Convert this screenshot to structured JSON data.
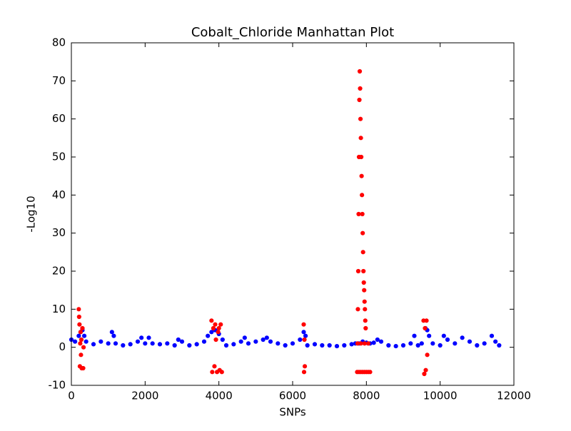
{
  "chart_data": {
    "type": "scatter",
    "title": "Cobalt_Chloride Manhattan Plot",
    "x_label": "SNPs",
    "y_label": "-Log10",
    "xlim": [
      0,
      12000
    ],
    "ylim": [
      -10,
      80
    ],
    "xticks": [
      0,
      2000,
      4000,
      6000,
      8000,
      10000,
      12000
    ],
    "yticks": [
      -10,
      0,
      10,
      20,
      30,
      40,
      50,
      60,
      70,
      80
    ],
    "series": [
      {
        "color": "#0000ff",
        "x": [
          0,
          100,
          200,
          250,
          300,
          350,
          400,
          600,
          800,
          1000,
          1100,
          1150,
          1200,
          1400,
          1600,
          1800,
          1900,
          2000,
          2100,
          2200,
          2400,
          2600,
          2800,
          2900,
          3000,
          3200,
          3400,
          3600,
          3700,
          3800,
          3900,
          4000,
          4100,
          4200,
          4400,
          4600,
          4700,
          4800,
          5000,
          5200,
          5300,
          5400,
          5600,
          5800,
          6000,
          6200,
          6300,
          6350,
          6400,
          6600,
          6800,
          7000,
          7200,
          7400,
          7600,
          7700,
          7800,
          7900,
          8000,
          8100,
          8200,
          8300,
          8400,
          8600,
          8800,
          9000,
          9200,
          9300,
          9400,
          9500,
          9600,
          9650,
          9700,
          9800,
          10000,
          10100,
          10200,
          10400,
          10600,
          10800,
          11000,
          11200,
          11400,
          11500,
          11600
        ],
        "values": [
          2,
          1.5,
          3,
          4,
          4.5,
          3,
          1.5,
          0.8,
          1.5,
          1,
          4,
          3,
          1,
          0.5,
          0.8,
          1.5,
          2.5,
          1,
          2.5,
          1,
          0.8,
          1,
          0.5,
          2,
          1.5,
          0.5,
          0.8,
          1.5,
          3,
          4,
          4.5,
          3.5,
          2,
          0.5,
          0.8,
          1.5,
          2.5,
          1,
          1.5,
          2,
          2.5,
          1.5,
          1,
          0.5,
          1,
          2,
          4,
          3,
          0.5,
          0.8,
          0.5,
          0.5,
          0.3,
          0.5,
          0.8,
          1,
          1,
          1.5,
          1.2,
          1,
          1.2,
          2,
          1.5,
          0.5,
          0.3,
          0.5,
          1,
          3,
          0.5,
          1,
          5,
          4.5,
          3,
          1,
          0.5,
          3,
          2,
          1,
          2.5,
          1.5,
          0.5,
          1,
          3,
          1.5,
          0.5
        ]
      },
      {
        "color": "#ff0000",
        "x": [
          200,
          210,
          220,
          230,
          240,
          250,
          260,
          270,
          280,
          300,
          320,
          330,
          3800,
          3820,
          3850,
          3880,
          3900,
          3920,
          3950,
          3980,
          4000,
          4020,
          4050,
          4080,
          6300,
          6310,
          6320,
          6330,
          7750,
          7760,
          7770,
          7780,
          7790,
          7800,
          7810,
          7820,
          7830,
          7840,
          7850,
          7860,
          7870,
          7880,
          7890,
          7900,
          7910,
          7920,
          7930,
          7940,
          7950,
          7960,
          7970,
          7980,
          7800,
          7850,
          7900,
          7950,
          8000,
          8050,
          8100,
          7850,
          7950,
          8050,
          9550,
          9570,
          9590,
          9610,
          9630,
          9650
        ],
        "values": [
          10,
          8,
          6,
          -5,
          1,
          4,
          -2,
          2,
          -5.5,
          5,
          -5.5,
          0,
          7,
          -6.5,
          5,
          -5,
          6,
          2,
          -6.5,
          4,
          5,
          -6,
          6,
          -6.5,
          6,
          -6.5,
          2,
          -5,
          -6.5,
          1,
          10,
          20,
          35,
          50,
          65,
          72.5,
          68,
          60,
          55,
          50,
          45,
          40,
          35,
          30,
          25,
          20,
          17,
          15,
          12,
          10,
          7,
          5,
          -6.5,
          -6.5,
          -6.5,
          -6.5,
          -6.5,
          -6.5,
          -6.5,
          1,
          1,
          1,
          7,
          -7,
          5,
          -6,
          7,
          -2
        ]
      }
    ]
  }
}
